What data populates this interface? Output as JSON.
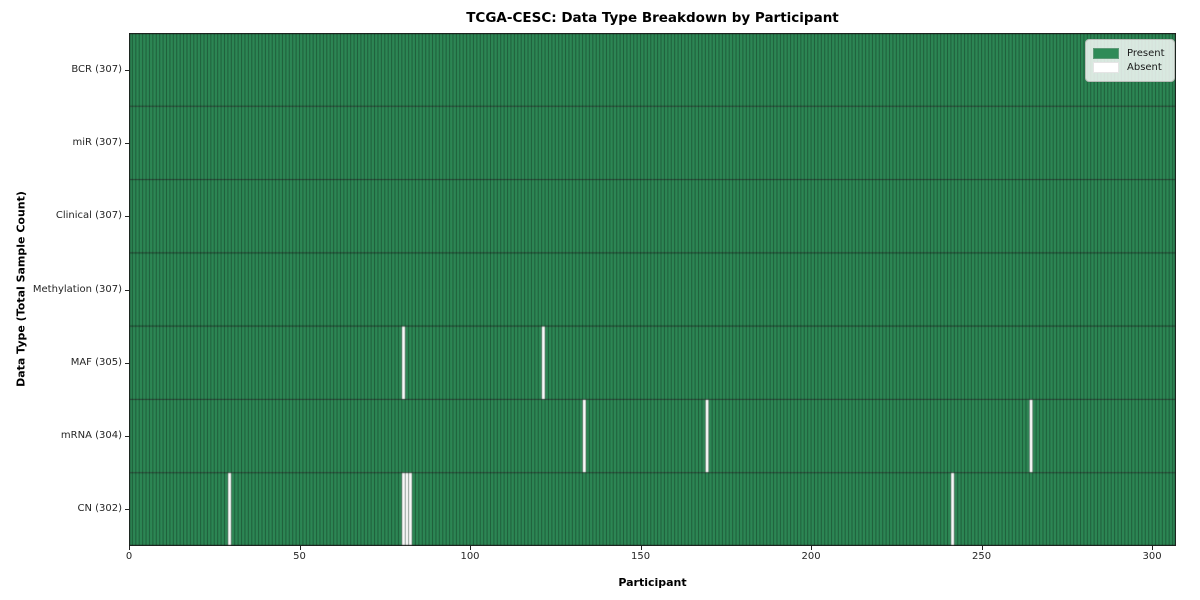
{
  "chart_data": {
    "type": "heatmap",
    "title": "TCGA-CESC: Data Type Breakdown by Participant",
    "xlabel": "Participant",
    "ylabel": "Data Type (Total Sample Count)",
    "n_participants": 307,
    "x_ticks": [
      0,
      50,
      100,
      150,
      200,
      250,
      300
    ],
    "present_color": "#2e8b57",
    "absent_color": "#ffffff",
    "cell_edge_color": "rgba(0,0,0,0.5)",
    "row_edge_color": "rgba(0,0,0,0.6)",
    "border_color": "#1a1a1a",
    "legend": {
      "position": "upper right",
      "entries": [
        {
          "label": "Present",
          "color": "#2e8b57"
        },
        {
          "label": "Absent",
          "color": "#ffffff"
        }
      ]
    },
    "rows": [
      {
        "label": "BCR (307)",
        "data_type": "BCR",
        "total_samples": 307,
        "absent_participants": []
      },
      {
        "label": "miR (307)",
        "data_type": "miR",
        "total_samples": 307,
        "absent_participants": []
      },
      {
        "label": "Clinical (307)",
        "data_type": "Clinical",
        "total_samples": 307,
        "absent_participants": []
      },
      {
        "label": "Methylation (307)",
        "data_type": "Methylation",
        "total_samples": 307,
        "absent_participants": []
      },
      {
        "label": "MAF (305)",
        "data_type": "MAF",
        "total_samples": 305,
        "absent_participants": [
          80,
          121
        ]
      },
      {
        "label": "mRNA (304)",
        "data_type": "mRNA",
        "total_samples": 304,
        "absent_participants": [
          133,
          169,
          264
        ]
      },
      {
        "label": "CN (302)",
        "data_type": "CN",
        "total_samples": 302,
        "absent_participants": [
          29,
          80,
          81,
          82,
          241
        ]
      }
    ]
  }
}
